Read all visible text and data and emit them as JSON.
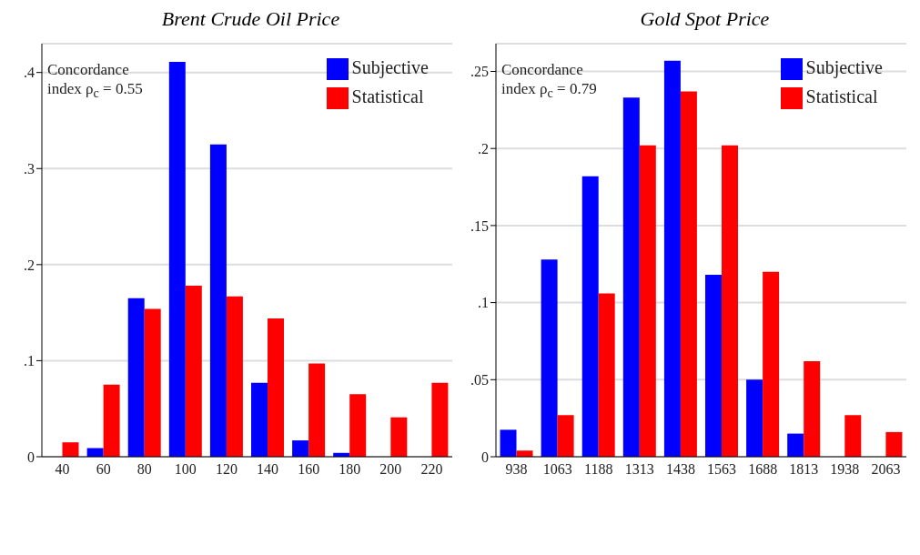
{
  "chart_data": [
    {
      "type": "bar",
      "title": "Brent Crude Oil Price",
      "categories": [
        "40",
        "60",
        "80",
        "100",
        "120",
        "140",
        "160",
        "180",
        "200",
        "220"
      ],
      "series": [
        {
          "name": "Subjective",
          "color": "#0000ff",
          "values": [
            0,
            0.009,
            0.165,
            0.411,
            0.325,
            0.077,
            0.017,
            0.004,
            0,
            0
          ]
        },
        {
          "name": "Statistical",
          "color": "#ff0000",
          "values": [
            0.015,
            0.075,
            0.154,
            0.178,
            0.167,
            0.144,
            0.097,
            0.065,
            0.041,
            0.077
          ]
        }
      ],
      "ylim": [
        0,
        0.43
      ],
      "yticks": [
        0,
        {
          "value": 0.1,
          "label": ".1"
        },
        {
          "value": 0.2,
          "label": ".2"
        },
        {
          "value": 0.3,
          "label": ".3"
        },
        {
          "value": 0.4,
          "label": ".4"
        }
      ],
      "grid": "y",
      "legend": "top right",
      "annotations": [
        "Concordance index ρ$_{c}$ = 0.55"
      ]
    },
    {
      "type": "bar",
      "title": "Gold Spot Price",
      "categories": [
        "938",
        "1063",
        "1188",
        "1313",
        "1438",
        "1563",
        "1688",
        "1813",
        "1938",
        "2063"
      ],
      "series": [
        {
          "name": "Subjective",
          "color": "#0000ff",
          "values": [
            0.0175,
            0.128,
            0.182,
            0.233,
            0.257,
            0.118,
            0.05,
            0.015,
            0,
            0
          ]
        },
        {
          "name": "Statistical",
          "color": "#ff0000",
          "values": [
            0.004,
            0.027,
            0.106,
            0.202,
            0.237,
            0.202,
            0.12,
            0.062,
            0.027,
            0.016
          ]
        }
      ],
      "ylim": [
        0,
        0.268
      ],
      "yticks": [
        0,
        {
          "value": 0.05,
          "label": ".05"
        },
        {
          "value": 0.1,
          "label": ".1"
        },
        {
          "value": 0.15,
          "label": ".15"
        },
        {
          "value": 0.2,
          "label": ".2"
        },
        {
          "value": 0.25,
          "label": ".25"
        }
      ],
      "grid": "y",
      "legend": "top right",
      "annotations": [
        "Concordance index ρ$_{c}$ = 0.79"
      ]
    }
  ]
}
